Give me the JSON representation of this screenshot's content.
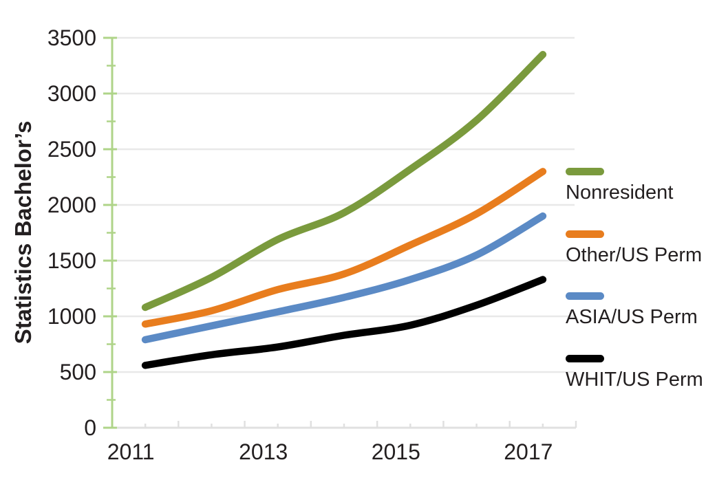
{
  "chart_data": {
    "type": "line",
    "ylabel": "Statistics Bachelor’s",
    "xlabel": "",
    "x": [
      2011,
      2012,
      2013,
      2014,
      2015,
      2016,
      2017
    ],
    "x_labeled_years": [
      2011,
      2013,
      2015,
      2017
    ],
    "x_tick_labels": [
      "2011",
      "2013",
      "2015",
      "2017"
    ],
    "y_ticks": [
      0,
      500,
      1000,
      1500,
      2000,
      2500,
      3000,
      3500
    ],
    "y_tick_labels": [
      "0",
      "500",
      "1000",
      "1500",
      "2000",
      "2500",
      "3000",
      "3500"
    ],
    "y_minor_tick_step": 250,
    "ylim": [
      0,
      3500
    ],
    "grid": "horizontal",
    "legend_position": "right",
    "line_style": "smooth",
    "series": [
      {
        "name": "Nonresident",
        "color": "#7a9a3d",
        "values": [
          1080,
          1350,
          1690,
          1930,
          2320,
          2760,
          3350
        ]
      },
      {
        "name": "Other/US Perm",
        "color": "#e87d1e",
        "values": [
          930,
          1050,
          1240,
          1380,
          1640,
          1920,
          2300
        ]
      },
      {
        "name": "ASIA/US Perm",
        "color": "#5b8ac5",
        "values": [
          790,
          915,
          1040,
          1170,
          1330,
          1550,
          1900
        ]
      },
      {
        "name": "WHIT/US Perm",
        "color": "#000000",
        "values": [
          560,
          655,
          725,
          830,
          920,
          1100,
          1330
        ]
      }
    ],
    "axis_colors": {
      "y_axis": "#afd489",
      "x_axis": "#e0e0e0",
      "gridline": "#e8e8e8",
      "tick_label": "#231f20"
    }
  }
}
